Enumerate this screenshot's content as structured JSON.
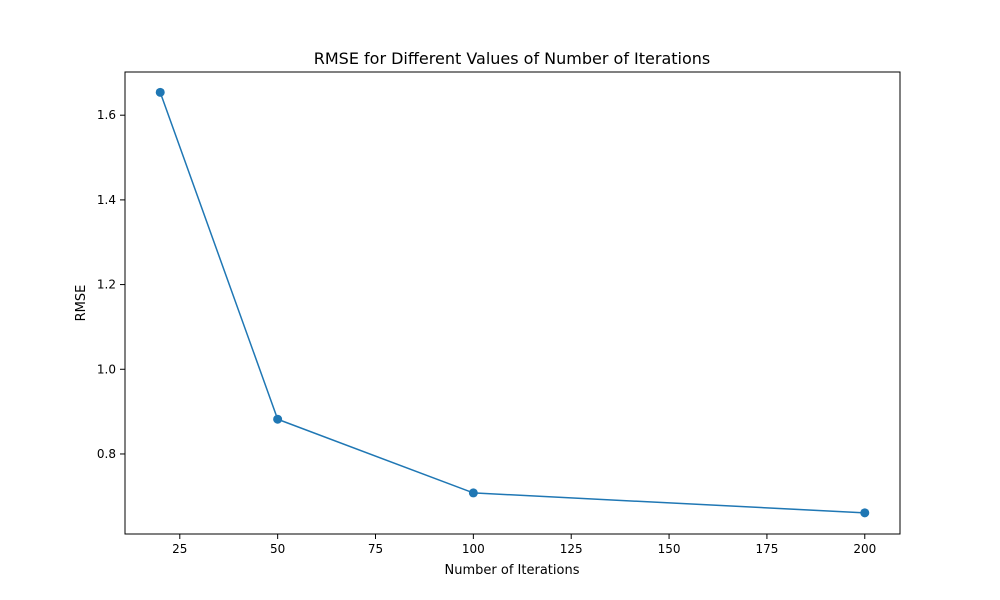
{
  "chart_data": {
    "type": "line",
    "title": "RMSE for Different Values of Number of Iterations",
    "xlabel": "Number of Iterations",
    "ylabel": "RMSE",
    "xlim": [
      11,
      209
    ],
    "ylim": [
      0.611,
      1.702
    ],
    "x_ticks": [
      25,
      50,
      75,
      100,
      125,
      150,
      175,
      200
    ],
    "y_ticks": [
      0.8,
      1.0,
      1.2,
      1.4,
      1.6
    ],
    "y_tick_labels": [
      "0.8",
      "1.0",
      "1.2",
      "1.4",
      "1.6"
    ],
    "grid": false,
    "series": [
      {
        "x": [
          20,
          50,
          100,
          200
        ],
        "values": [
          1.654,
          0.882,
          0.708,
          0.661
        ],
        "color": "#1f77b4",
        "marker": "circle"
      }
    ]
  }
}
